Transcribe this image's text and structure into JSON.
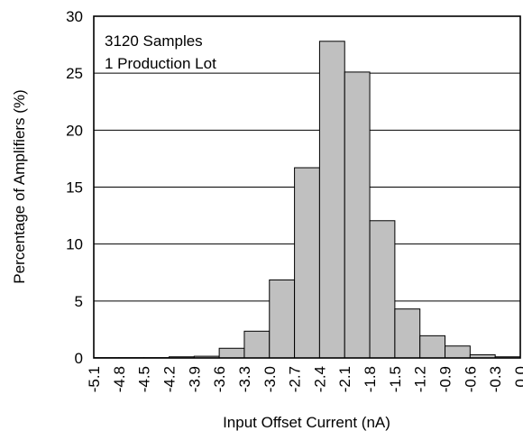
{
  "chart_data": {
    "type": "bar",
    "xlabel": "Input Offset Current (nA)",
    "ylabel": "Percentage of Amplifiers (%)",
    "ylim": [
      0,
      30
    ],
    "yticks": [
      "0",
      "5",
      "10",
      "15",
      "20",
      "25",
      "30"
    ],
    "x_tick_labels": [
      "-5.1",
      "-4.8",
      "-4.5",
      "-4.2",
      "-3.9",
      "-3.6",
      "-3.3",
      "-3.0",
      "-2.7",
      "-2.4",
      "-2.1",
      "-1.8",
      "-1.5",
      "-1.2",
      "-0.9",
      "-0.6",
      "-0.3",
      "0.0"
    ],
    "bin_edges": [
      -5.1,
      -4.8,
      -4.5,
      -4.2,
      -3.9,
      -3.6,
      -3.3,
      -3.0,
      -2.7,
      -2.4,
      -2.1,
      -1.8,
      -1.5,
      -1.2,
      -0.9,
      -0.6,
      -0.3,
      0.0
    ],
    "values": [
      0.03,
      0.03,
      0.03,
      0.1,
      0.15,
      0.85,
      2.35,
      6.85,
      16.7,
      27.8,
      25.1,
      12.05,
      4.3,
      1.95,
      1.05,
      0.28,
      0.1
    ],
    "annotations": [
      "3120 Samples",
      "1 Production Lot"
    ],
    "grid": "horizontal",
    "bar_color": "#c0c0c0",
    "bar_edge_color": "#000000"
  }
}
